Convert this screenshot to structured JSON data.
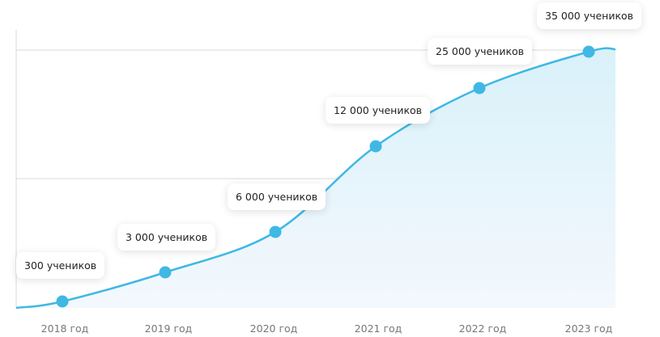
{
  "timeline": {
    "points": [
      {
        "year": "2018 год",
        "label": "300 учеников"
      },
      {
        "year": "2019 год",
        "label": "3 000 учеников"
      },
      {
        "year": "2020 год",
        "label": "6 000 учеников"
      },
      {
        "year": "2021 год",
        "label": "12 000 учеников"
      },
      {
        "year": "2022 год",
        "label": "25 000 учеников"
      },
      {
        "year": "2023 год",
        "label": "35 000 учеников"
      }
    ]
  }
}
